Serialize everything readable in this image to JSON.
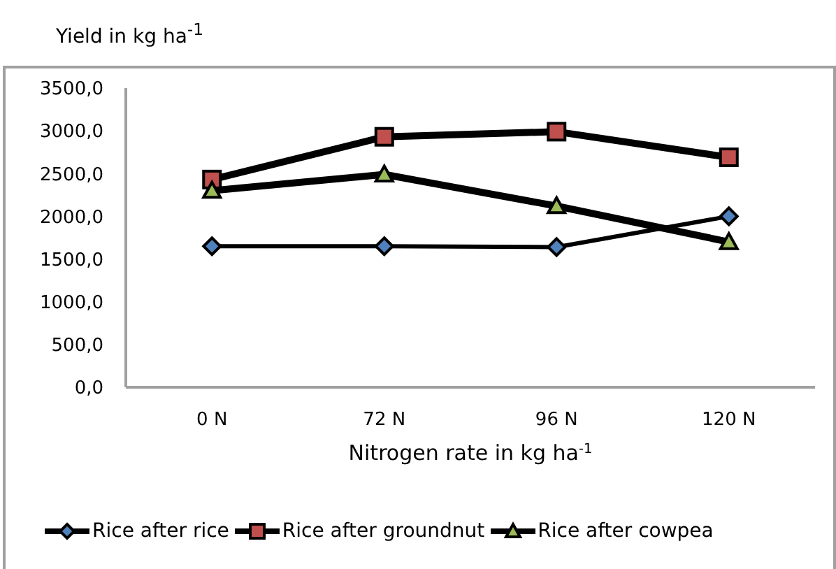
{
  "chart_data": {
    "type": "line",
    "ylabel": "Yield in kg ha$^{-1}$",
    "xlabel": "Nitrogen rate in kg ha$^{-1}$",
    "categories": [
      "0 N",
      "72 N",
      "96 N",
      "120 N"
    ],
    "series": [
      {
        "name": "Rice after rice",
        "color": "#4f81bd",
        "marker": "diamond",
        "values": [
          1650,
          1650,
          1640,
          2000
        ]
      },
      {
        "name": "Rice after groundnut",
        "color": "#c0504d",
        "marker": "square",
        "values": [
          2430,
          2930,
          2990,
          2690
        ]
      },
      {
        "name": "Rice after cowpea",
        "color": "#9bbb59",
        "marker": "triangle",
        "values": [
          2300,
          2490,
          2120,
          1700
        ]
      }
    ],
    "ylim": [
      0,
      3500
    ],
    "yticks": [
      {
        "value": 0,
        "label": "0,0"
      },
      {
        "value": 500,
        "label": "500,0"
      },
      {
        "value": 1000,
        "label": "1000,0"
      },
      {
        "value": 1500,
        "label": "1500,0"
      },
      {
        "value": 2000,
        "label": "2000,0"
      },
      {
        "value": 2500,
        "label": "2500,0"
      },
      {
        "value": 3000,
        "label": "3000,0"
      },
      {
        "value": 3500,
        "label": "3500,0"
      }
    ],
    "grid": false,
    "legend": "bottom"
  }
}
